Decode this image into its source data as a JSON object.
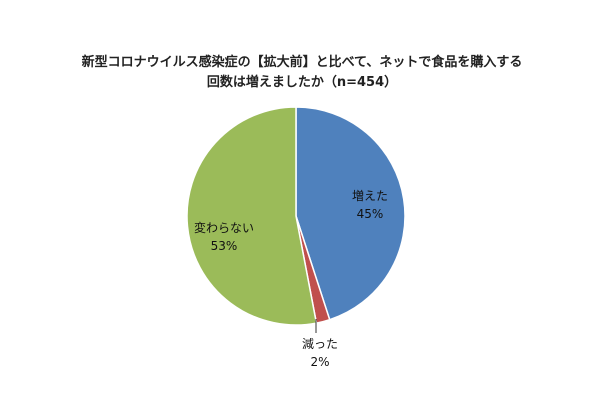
{
  "chart_data": {
    "type": "pie",
    "title": "新型コロナウイルス感染症の【拡大前】と比べて、ネットで食品を購入する",
    "subtitle": "回数は増えましたか（n=454）",
    "slices": [
      {
        "label": "増えた",
        "value": 45,
        "value_label": "45%",
        "color": "#4f81bd"
      },
      {
        "label": "減った",
        "value": 2,
        "value_label": "2%",
        "color": "#c0504d"
      },
      {
        "label": "変わらない",
        "value": 53,
        "value_label": "53%",
        "color": "#9bbb59"
      }
    ],
    "start_angle": "12 o'clock",
    "direction": "clockwise",
    "legend": "none"
  }
}
